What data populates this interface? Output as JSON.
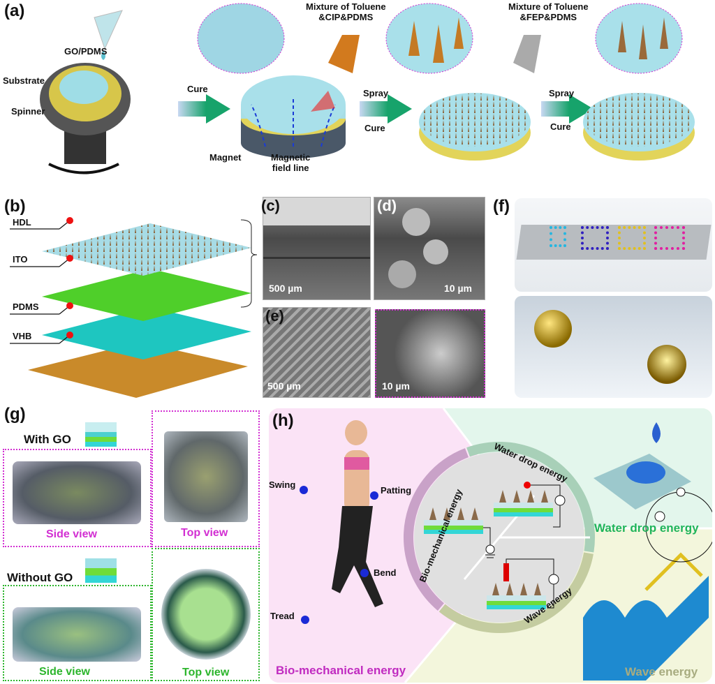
{
  "panels": {
    "a": "(a)",
    "b": "(b)",
    "c": "(c)",
    "d": "(d)",
    "e": "(e)",
    "f": "(f)",
    "g": "(g)",
    "h": "(h)"
  },
  "a": {
    "go_pdms": "GO/PDMS",
    "substrate": "Substrate",
    "spinner": "Spinner",
    "cure1": "Cure",
    "mix1_l1": "Mixture of Toluene",
    "mix1_l2": "&CIP&PDMS",
    "magnet": "Magnet",
    "field_l1": "Magnetic",
    "field_l2": "field line",
    "spray1": "Spray",
    "cure2": "Cure",
    "mix2_l1": "Mixture of Toluene",
    "mix2_l2": "&FEP&PDMS",
    "spray2": "Spray",
    "cure3": "Cure"
  },
  "b": {
    "layers": [
      "HDL",
      "ITO",
      "PDMS",
      "VHB"
    ]
  },
  "c": {
    "scale": "500 µm"
  },
  "d": {
    "scale": "10 µm"
  },
  "e": {
    "scale1": "500 µm",
    "scale2": "10 µm"
  },
  "g": {
    "with_go": "With GO",
    "without_go": "Without GO",
    "side_view": "Side view",
    "top_view": "Top view"
  },
  "h": {
    "swing": "Swing",
    "patting": "Patting",
    "bend": "Bend",
    "tread": "Tread",
    "bio": "Bio-mechanical energy",
    "ring_bio": "Bio-mechanical energy",
    "ring_water": "Water drop energy",
    "ring_wave": "Wave energy",
    "water": "Water drop energy",
    "wave": "Wave energy",
    "ammeter": "A"
  },
  "colors": {
    "arrow": "#1aa36a",
    "magenta": "#d22fd2",
    "green": "#2cb52c",
    "bio_bg": "#fbe3f6",
    "water_bg": "#e3f6ec",
    "wave_bg": "#f3f6dc"
  }
}
